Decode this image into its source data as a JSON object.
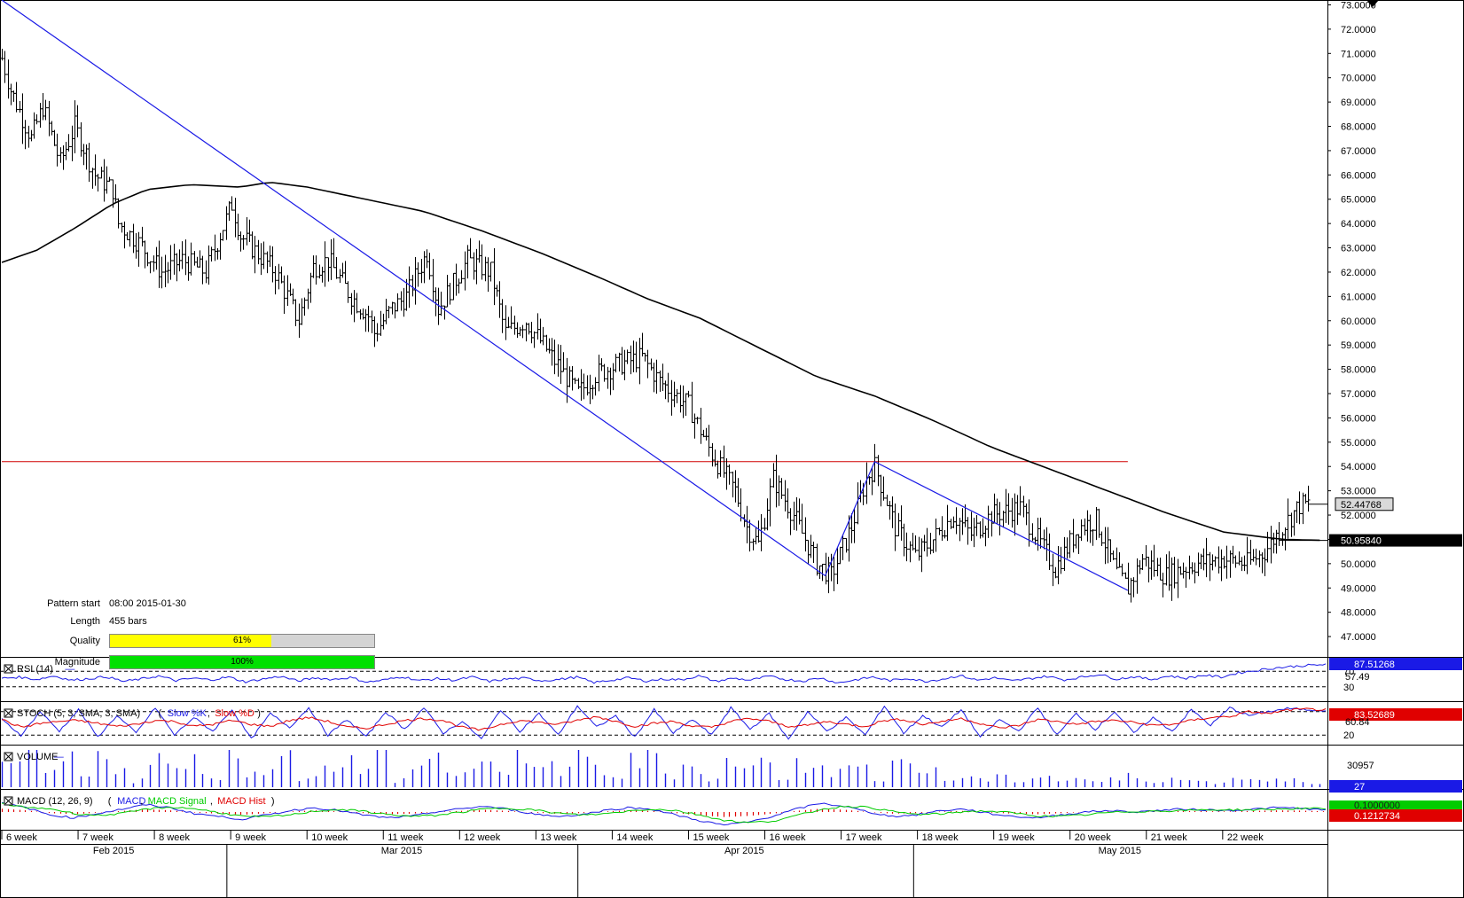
{
  "colors": {
    "background": "#ffffff",
    "price_bars": "#000000",
    "moving_average": "#000000",
    "trend_lines": "#1a1ae6",
    "resistance_line": "#d00000",
    "rsi_line": "#1a1ae6",
    "stoch_k": "#1a1ae6",
    "stoch_d": "#e00000",
    "volume_bars": "#1a1ae6",
    "macd_line": "#1a1ae6",
    "macd_signal": "#00cc00",
    "macd_hist": "#e00000",
    "quality_fill": "#ffff00",
    "magnitude_fill": "#00e000",
    "last_price_badge": "#d9d9d9",
    "ma_value_badge": "#000000",
    "rsi_badge": "#1a1ae6",
    "stoch_badge": "#e00000",
    "volume_badge": "#1a1ae6",
    "macd_signal_badge": "#00cc00",
    "macd_hist_badge": "#e00000"
  },
  "pattern_info": {
    "start_label": "Pattern start",
    "start_value": "08:00 2015-01-30",
    "length_label": "Length",
    "length_value": "455 bars",
    "quality_label": "Quality",
    "quality_text": "61%",
    "quality_value": 0.61,
    "magnitude_label": "Magnitude",
    "magnitude_text": "100%",
    "magnitude_value": 1.0
  },
  "corner_icon": "triangle-down-icon",
  "chart_data": {
    "type": "ohlc",
    "y_ticks": [
      "73.0000",
      "72.0000",
      "71.0000",
      "70.0000",
      "69.0000",
      "68.0000",
      "67.0000",
      "66.0000",
      "65.0000",
      "64.0000",
      "63.0000",
      "62.0000",
      "61.0000",
      "60.0000",
      "59.0000",
      "58.0000",
      "57.0000",
      "56.0000",
      "55.0000",
      "54.0000",
      "53.0000",
      "52.0000",
      "51.0000",
      "50.0000",
      "49.0000",
      "48.0000",
      "47.0000"
    ],
    "ylim": [
      46.2,
      73.2
    ],
    "x_weeks": [
      "6 week",
      "7 week",
      "8 week",
      "9 week",
      "10 week",
      "11 week",
      "12 week",
      "13 week",
      "14 week",
      "15 week",
      "16 week",
      "17 week",
      "18 week",
      "19 week",
      "20 week",
      "21 week",
      "22 week"
    ],
    "x_months": [
      "Feb 2015",
      "Mar 2015",
      "Apr 2015",
      "May 2015"
    ],
    "num_bars": 455,
    "price_path": [
      [
        0,
        70.8
      ],
      [
        3,
        69.5
      ],
      [
        10,
        67.5
      ],
      [
        14,
        68.8
      ],
      [
        20,
        66.5
      ],
      [
        25,
        68.0
      ],
      [
        32,
        66.0
      ],
      [
        38,
        65.4
      ],
      [
        40,
        64.0
      ],
      [
        47,
        63.2
      ],
      [
        55,
        62.0
      ],
      [
        62,
        62.5
      ],
      [
        70,
        62.0
      ],
      [
        79,
        64.8
      ],
      [
        82,
        63.5
      ],
      [
        94,
        62.0
      ],
      [
        102,
        60.0
      ],
      [
        107,
        62.2
      ],
      [
        112,
        62.5
      ],
      [
        120,
        61.0
      ],
      [
        126,
        60.2
      ],
      [
        128,
        59.5
      ],
      [
        134,
        60.5
      ],
      [
        139,
        61.0
      ],
      [
        146,
        62.8
      ],
      [
        150,
        60.5
      ],
      [
        160,
        62.5
      ],
      [
        168,
        62.0
      ],
      [
        173,
        59.5
      ],
      [
        180,
        60.0
      ],
      [
        186,
        59.0
      ],
      [
        192,
        58.0
      ],
      [
        198,
        57.0
      ],
      [
        204,
        57.8
      ],
      [
        212,
        58.2
      ],
      [
        220,
        58.5
      ],
      [
        226,
        57.5
      ],
      [
        236,
        56.5
      ],
      [
        244,
        54.5
      ],
      [
        252,
        53.0
      ],
      [
        256,
        51.5
      ],
      [
        260,
        50.8
      ],
      [
        265,
        53.5
      ],
      [
        272,
        52.0
      ],
      [
        280,
        50.0
      ],
      [
        285,
        49.5
      ],
      [
        292,
        51.5
      ],
      [
        297,
        53.5
      ],
      [
        300,
        54.0
      ],
      [
        307,
        51.5
      ],
      [
        314,
        50.3
      ],
      [
        320,
        51.0
      ],
      [
        327,
        52.0
      ],
      [
        333,
        51.2
      ],
      [
        340,
        52.0
      ],
      [
        350,
        52.3
      ],
      [
        356,
        51.0
      ],
      [
        362,
        49.8
      ],
      [
        370,
        51.5
      ],
      [
        376,
        51.8
      ],
      [
        383,
        49.6
      ],
      [
        387,
        49.0
      ],
      [
        392,
        50.2
      ],
      [
        400,
        49.5
      ],
      [
        410,
        50.0
      ],
      [
        420,
        50.2
      ],
      [
        428,
        50.0
      ],
      [
        434,
        50.5
      ],
      [
        440,
        51.5
      ],
      [
        446,
        52.4
      ],
      [
        449,
        52.45
      ]
    ],
    "moving_average": [
      [
        0,
        62.4
      ],
      [
        12,
        62.9
      ],
      [
        25,
        63.8
      ],
      [
        38,
        64.8
      ],
      [
        50,
        65.4
      ],
      [
        65,
        65.6
      ],
      [
        82,
        65.5
      ],
      [
        92,
        65.7
      ],
      [
        105,
        65.5
      ],
      [
        125,
        65.0
      ],
      [
        145,
        64.5
      ],
      [
        165,
        63.7
      ],
      [
        185,
        62.8
      ],
      [
        205,
        61.8
      ],
      [
        222,
        60.9
      ],
      [
        240,
        60.1
      ],
      [
        260,
        58.9
      ],
      [
        280,
        57.7
      ],
      [
        300,
        56.9
      ],
      [
        320,
        55.9
      ],
      [
        340,
        54.8
      ],
      [
        360,
        53.9
      ],
      [
        380,
        53.0
      ],
      [
        400,
        52.1
      ],
      [
        420,
        51.3
      ],
      [
        440,
        51.0
      ],
      [
        455,
        50.96
      ]
    ],
    "trend_lines": [
      {
        "from": [
          0,
          73.2
        ],
        "to": [
          283,
          49.5
        ]
      },
      {
        "from": [
          283,
          49.5
        ],
        "to": [
          300,
          54.2
        ]
      },
      {
        "from": [
          300,
          54.2
        ],
        "to": [
          387,
          48.9
        ]
      }
    ],
    "resistance_level": 54.2,
    "resistance_bars": [
      0,
      387
    ],
    "last_price": "52.44768",
    "last_price_value": 52.44768,
    "ma_value": "50.95840",
    "ma_value_num": 50.9584,
    "rsi": {
      "label": "RSI (14)",
      "levels": [
        "70",
        "30"
      ],
      "value": "87.51268",
      "extra": "57.49",
      "values": [
        52,
        55,
        49,
        58,
        47,
        51,
        56,
        44,
        50,
        58,
        46,
        52,
        48,
        55,
        43,
        50,
        57,
        45,
        53,
        49,
        54,
        42,
        48,
        56,
        46,
        51,
        47,
        55,
        44,
        50,
        52,
        46,
        49,
        55,
        41,
        47,
        53,
        45,
        50,
        48,
        58,
        44,
        52,
        47,
        57,
        49,
        45,
        53,
        40,
        48,
        55,
        46,
        52,
        44,
        50,
        59,
        47,
        53,
        45,
        51,
        57,
        48,
        55,
        62,
        50,
        56,
        49,
        58,
        52,
        60,
        55,
        66,
        72,
        78,
        82,
        85,
        87
      ]
    },
    "stoch": {
      "label": "STOCH (5, 3, SMA, 3, SMA)",
      "k_label": "Slow %K",
      "d_label": "Slow %D",
      "levels": [
        "80",
        "20"
      ],
      "value": "83.52689",
      "extra": "60.84",
      "k_values": [
        60,
        20,
        80,
        30,
        85,
        15,
        70,
        25,
        90,
        20,
        65,
        30,
        85,
        10,
        75,
        40,
        90,
        20,
        60,
        15,
        80,
        35,
        90,
        25,
        55,
        10,
        85,
        30,
        75,
        20,
        95,
        40,
        70,
        15,
        85,
        25,
        60,
        20,
        90,
        35,
        75,
        10,
        80,
        30,
        65,
        20,
        95,
        25,
        70,
        40,
        85,
        15,
        60,
        30,
        90,
        20,
        75,
        35,
        80,
        25,
        65,
        30,
        85,
        45,
        90,
        70,
        80,
        88,
        85,
        84
      ]
    },
    "volume": {
      "label": "VOLUME",
      "value": "27",
      "scale": "30957",
      "values": [
        0.5,
        0.9,
        0.4,
        0.7,
        0.3,
        0.8,
        0.6,
        0.2,
        0.9,
        0.5,
        0.7,
        0.3,
        0.95,
        0.4,
        0.6,
        0.8,
        0.3,
        0.5,
        0.7,
        0.4,
        0.9,
        0.2,
        0.6,
        0.8,
        0.4,
        0.5,
        0.7,
        0.3,
        0.9,
        0.6,
        0.4,
        0.8,
        0.5,
        0.3,
        0.7,
        0.9,
        0.4,
        0.6,
        0.2,
        0.8,
        0.5,
        0.7,
        0.3,
        0.6,
        0.9,
        0.4,
        0.5,
        0.3,
        0.8,
        0.6,
        0.4,
        0.2,
        0.3,
        0.2,
        0.25,
        0.2,
        0.3,
        0.2,
        0.25,
        0.15,
        0.2,
        0.3,
        0.2,
        0.25,
        0.2,
        0.15,
        0.2,
        0.3,
        0.2,
        0.25,
        0.2,
        0.15
      ]
    },
    "macd": {
      "label": "MACD (12, 26, 9)",
      "line_label": "MACD",
      "signal_label": "MACD Signal",
      "hist_label": "MACD Hist",
      "value": "0.1212734",
      "signal_value": "0.1000000",
      "values": [
        0.6,
        0.3,
        -0.2,
        -0.4,
        -0.1,
        0.2,
        0.5,
        0.3,
        -0.1,
        -0.3,
        -0.5,
        -0.2,
        0.1,
        0.3,
        0.1,
        -0.2,
        -0.4,
        -0.3,
        0.0,
        0.2,
        0.4,
        0.2,
        -0.1,
        -0.3,
        -0.2,
        0.1,
        0.3,
        0.2,
        -0.2,
        -0.6,
        -0.9,
        -0.7,
        -0.3,
        0.2,
        0.6,
        0.4,
        0.0,
        -0.3,
        -0.2,
        0.1,
        0.2,
        -0.1,
        -0.3,
        -0.4,
        -0.2,
        0.0,
        0.1,
        0.0,
        0.1,
        0.2,
        0.15,
        0.1,
        0.2,
        0.3,
        0.25,
        0.12
      ]
    }
  }
}
